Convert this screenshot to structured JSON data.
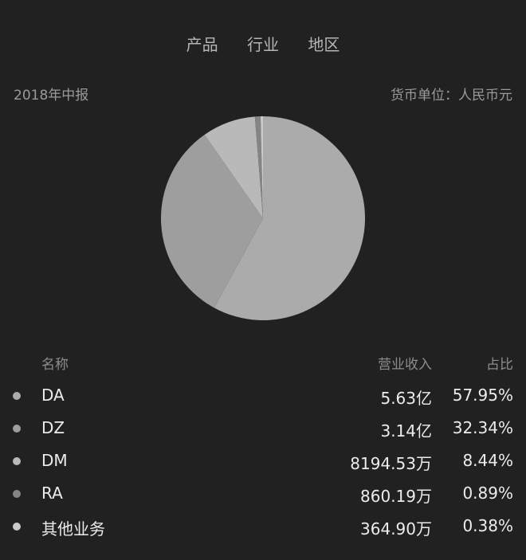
{
  "tabs": [
    "产品",
    "行业",
    "地区"
  ],
  "period": "2018年中报",
  "currency_unit": "货币单位：人民币元",
  "table": {
    "headers": {
      "name": "名称",
      "revenue": "营业收入",
      "share": "占比"
    },
    "rows": [
      {
        "name": "DA",
        "revenue": "5.63亿",
        "share": "57.95%",
        "color": "#ababab"
      },
      {
        "name": "DZ",
        "revenue": "3.14亿",
        "share": "32.34%",
        "color": "#9e9e9e"
      },
      {
        "name": "DM",
        "revenue": "8194.53万",
        "share": "8.44%",
        "color": "#b9b9b9"
      },
      {
        "name": "RA",
        "revenue": "860.19万",
        "share": "0.89%",
        "color": "#858585"
      },
      {
        "name": "其他业务",
        "revenue": "364.90万",
        "share": "0.38%",
        "color": "#cacaca"
      }
    ]
  },
  "chart_data": {
    "type": "pie",
    "categories": [
      "DA",
      "DZ",
      "DM",
      "RA",
      "其他业务"
    ],
    "values": [
      57.95,
      32.34,
      8.44,
      0.89,
      0.38
    ],
    "colors": [
      "#ababab",
      "#9e9e9e",
      "#b9b9b9",
      "#858585",
      "#cacaca"
    ]
  }
}
